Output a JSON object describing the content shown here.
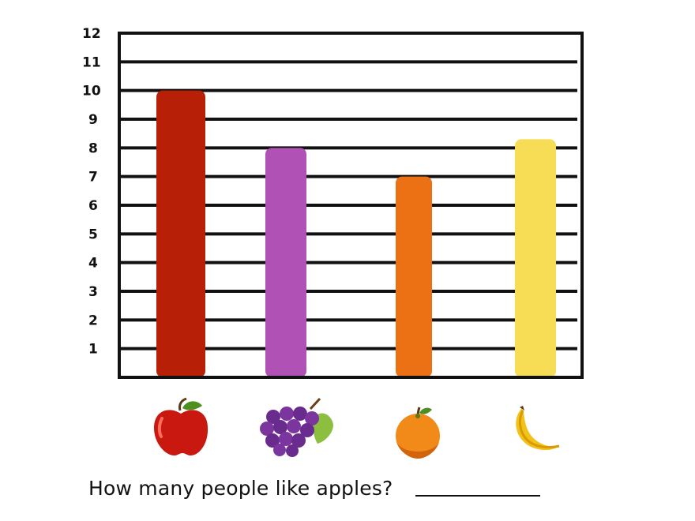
{
  "chart_data": {
    "type": "bar",
    "categories": [
      "apple",
      "grapes",
      "orange",
      "banana"
    ],
    "values": [
      10,
      8,
      7,
      8.3
    ],
    "colors": [
      "#b71f06",
      "#b052b5",
      "#ec7014",
      "#f7dc55"
    ],
    "icons": [
      "apple-icon",
      "grapes-icon",
      "orange-icon",
      "banana-icon"
    ],
    "yticks": [
      "1",
      "2",
      "3",
      "4",
      "5",
      "6",
      "7",
      "8",
      "9",
      "10",
      "11",
      "12"
    ],
    "ylim": [
      0,
      12
    ],
    "grid": true
  },
  "question": {
    "text": "How many people like apples?"
  }
}
